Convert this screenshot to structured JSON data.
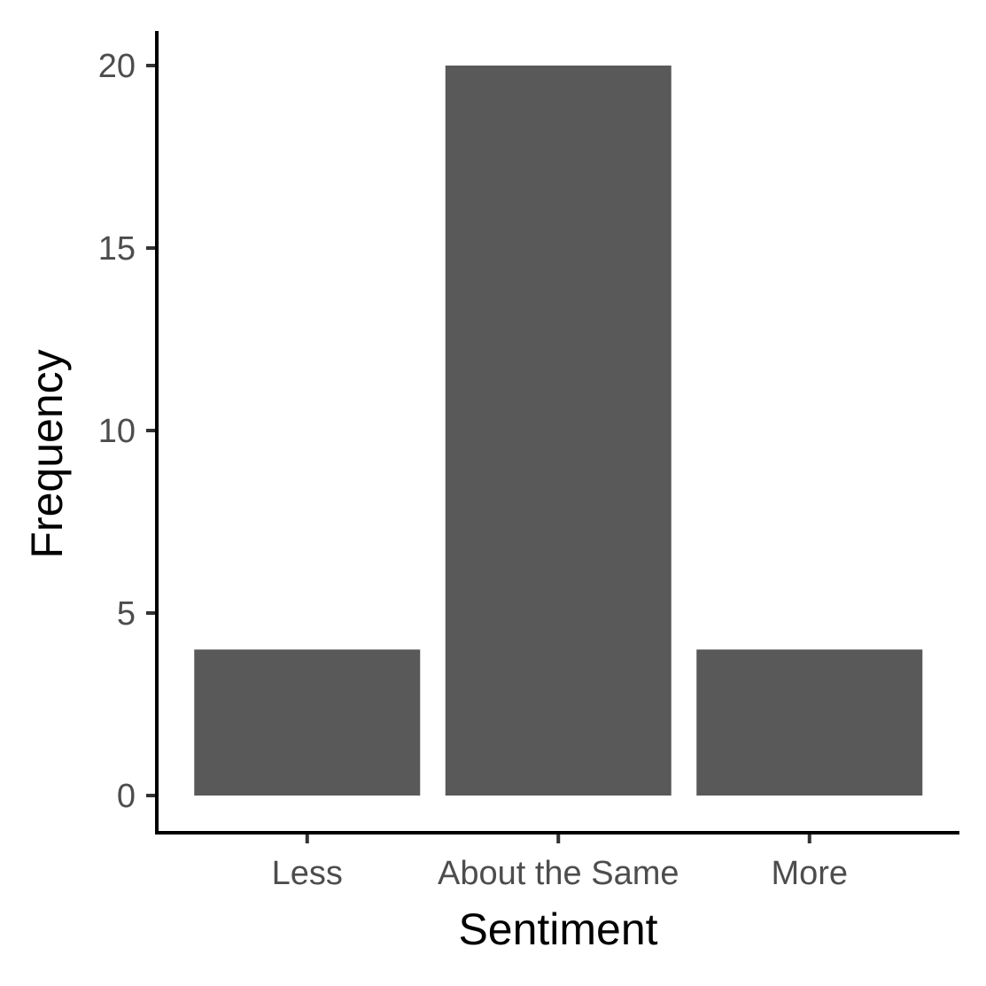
{
  "chart_data": {
    "type": "bar",
    "categories": [
      "Less",
      "About the Same",
      "More"
    ],
    "values": [
      4,
      20,
      4
    ],
    "xlabel": "Sentiment",
    "ylabel": "Frequency",
    "ylim": [
      0,
      20
    ],
    "yticks": [
      0,
      5,
      10,
      15,
      20
    ],
    "yticklabels": [
      "0",
      "5",
      "10",
      "15",
      "20"
    ],
    "grid": false,
    "legend": "none",
    "colors": {
      "bar": "#595959",
      "axis": "#000000",
      "tick_label": "#4d4d4d"
    }
  }
}
